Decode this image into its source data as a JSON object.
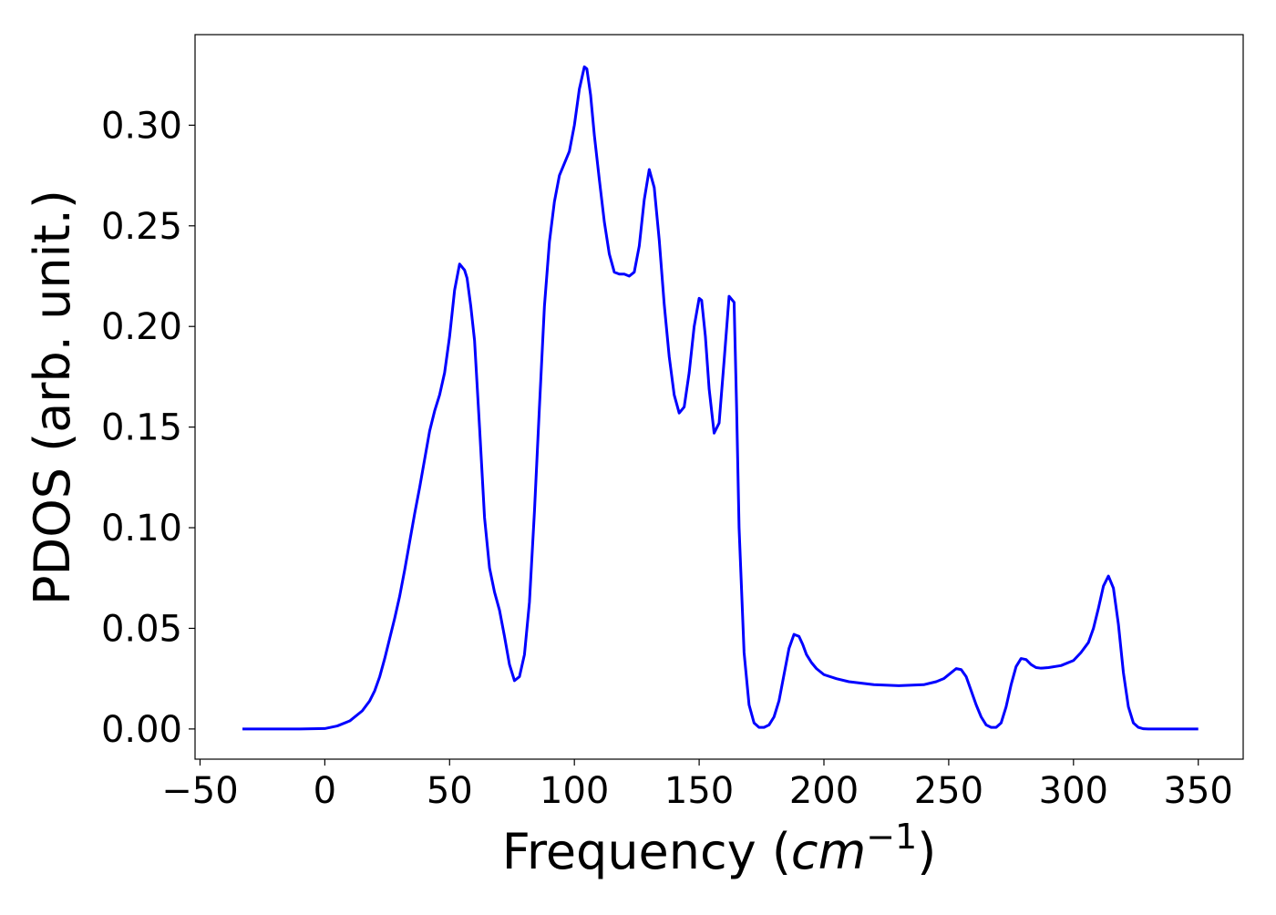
{
  "chart_data": {
    "type": "line",
    "title": "",
    "xlabel_text": "Frequency (",
    "xlabel_unit_base": "cm",
    "xlabel_unit_exp": "−1",
    "xlabel_close": ")",
    "ylabel": "PDOS (arb. unit.)",
    "xlim": [
      -52,
      368
    ],
    "ylim": [
      -0.015,
      0.345
    ],
    "x_ticks": [
      {
        "value": -50,
        "label": "−50"
      },
      {
        "value": 0,
        "label": "0"
      },
      {
        "value": 50,
        "label": "50"
      },
      {
        "value": 100,
        "label": "100"
      },
      {
        "value": 150,
        "label": "150"
      },
      {
        "value": 200,
        "label": "200"
      },
      {
        "value": 250,
        "label": "250"
      },
      {
        "value": 300,
        "label": "300"
      },
      {
        "value": 350,
        "label": "350"
      }
    ],
    "y_ticks": [
      {
        "value": 0.0,
        "label": "0.00"
      },
      {
        "value": 0.05,
        "label": "0.05"
      },
      {
        "value": 0.1,
        "label": "0.10"
      },
      {
        "value": 0.15,
        "label": "0.15"
      },
      {
        "value": 0.2,
        "label": "0.20"
      },
      {
        "value": 0.25,
        "label": "0.25"
      },
      {
        "value": 0.3,
        "label": "0.30"
      }
    ],
    "grid": false,
    "legend": "none",
    "series": [
      {
        "color": "#0000ff",
        "x": [
          -33,
          -20,
          -10,
          0,
          5,
          10,
          15,
          18,
          20,
          22,
          24,
          26,
          28,
          30,
          32,
          34,
          36,
          38,
          40,
          42,
          44,
          46,
          48,
          50,
          52,
          54,
          56,
          57,
          58.5,
          60,
          62,
          64,
          66,
          68,
          70,
          72,
          74,
          76,
          78,
          80,
          82,
          84,
          86,
          88,
          90,
          92,
          94,
          96,
          98,
          100,
          102,
          104,
          105,
          106.5,
          108,
          110,
          112,
          114,
          116,
          118,
          120,
          122,
          124,
          126,
          128,
          130,
          132,
          134,
          136,
          138,
          140,
          142,
          144,
          146,
          148,
          150,
          151,
          152.5,
          154,
          156,
          158,
          160,
          162,
          164,
          165,
          166,
          168,
          170,
          172,
          174,
          176,
          178,
          180,
          182,
          184,
          186,
          188,
          190,
          191.5,
          193,
          195,
          197,
          200,
          205,
          210,
          220,
          230,
          240,
          245,
          248,
          251,
          253,
          255,
          257,
          259,
          261,
          263,
          265,
          267,
          269,
          271,
          273,
          275,
          277,
          279,
          281,
          283,
          285,
          287,
          290,
          295,
          300,
          303,
          306,
          308,
          310,
          312,
          314,
          316,
          318,
          320,
          322,
          324,
          326,
          328,
          330,
          340,
          350
        ],
        "y": [
          0,
          0,
          0,
          0.0002,
          0.0015,
          0.004,
          0.009,
          0.014,
          0.019,
          0.026,
          0.035,
          0.045,
          0.055,
          0.066,
          0.079,
          0.093,
          0.107,
          0.12,
          0.134,
          0.148,
          0.158,
          0.166,
          0.177,
          0.195,
          0.218,
          0.231,
          0.228,
          0.224,
          0.21,
          0.193,
          0.15,
          0.105,
          0.08,
          0.068,
          0.059,
          0.046,
          0.032,
          0.024,
          0.026,
          0.037,
          0.063,
          0.108,
          0.16,
          0.21,
          0.242,
          0.262,
          0.275,
          0.281,
          0.287,
          0.3,
          0.318,
          0.329,
          0.328,
          0.315,
          0.295,
          0.273,
          0.252,
          0.236,
          0.227,
          0.226,
          0.226,
          0.225,
          0.227,
          0.24,
          0.263,
          0.278,
          0.269,
          0.243,
          0.211,
          0.185,
          0.166,
          0.157,
          0.16,
          0.177,
          0.2,
          0.214,
          0.213,
          0.195,
          0.169,
          0.147,
          0.152,
          0.183,
          0.215,
          0.212,
          0.16,
          0.1,
          0.038,
          0.012,
          0.003,
          0.0008,
          0.0008,
          0.002,
          0.006,
          0.014,
          0.027,
          0.04,
          0.047,
          0.046,
          0.042,
          0.037,
          0.033,
          0.03,
          0.027,
          0.025,
          0.0235,
          0.022,
          0.0215,
          0.022,
          0.0235,
          0.025,
          0.028,
          0.03,
          0.0295,
          0.026,
          0.019,
          0.012,
          0.006,
          0.002,
          0.0008,
          0.0008,
          0.003,
          0.011,
          0.022,
          0.031,
          0.035,
          0.0345,
          0.032,
          0.0305,
          0.0302,
          0.0305,
          0.0315,
          0.034,
          0.038,
          0.043,
          0.05,
          0.06,
          0.071,
          0.076,
          0.07,
          0.052,
          0.028,
          0.011,
          0.003,
          0.0008,
          0.0001,
          0,
          0,
          0
        ]
      }
    ]
  }
}
